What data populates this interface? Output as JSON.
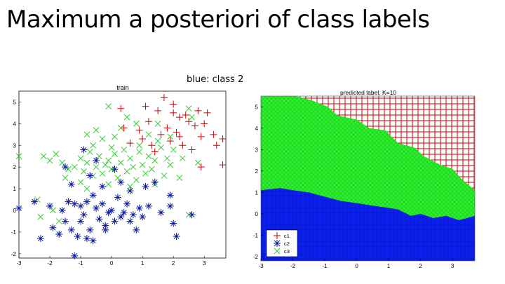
{
  "slide": {
    "title": "Maximum a posteriori of class labels",
    "note": "blue: class 2"
  },
  "colors": {
    "c1": "#cc0000",
    "c2": "#0b1aa0",
    "c3": "#33cc33",
    "c2_fill": "#0a1ff0",
    "c3_fill": "#2df02d"
  },
  "chart_data": [
    {
      "type": "scatter",
      "title": "train",
      "xlim": [
        -3,
        3.7
      ],
      "ylim": [
        -2.2,
        5.5
      ],
      "xticks": [
        -3,
        -2,
        -1,
        0,
        1,
        2,
        3
      ],
      "yticks": [
        -2,
        -1,
        0,
        1,
        2,
        3,
        4,
        5
      ],
      "series": [
        {
          "key": "c1",
          "marker": "plus",
          "points": [
            [
              2.8,
              4.6
            ],
            [
              3.1,
              4.5
            ],
            [
              2.4,
              4.4
            ],
            [
              2.0,
              4.5
            ],
            [
              1.5,
              4.6
            ],
            [
              2.2,
              4.3
            ],
            [
              2.5,
              4.1
            ],
            [
              3.0,
              4.0
            ],
            [
              2.7,
              3.9
            ],
            [
              1.8,
              3.8
            ],
            [
              1.2,
              4.1
            ],
            [
              0.9,
              3.7
            ],
            [
              1.6,
              3.5
            ],
            [
              2.1,
              3.6
            ],
            [
              2.9,
              3.4
            ],
            [
              3.3,
              3.5
            ],
            [
              3.6,
              3.3
            ],
            [
              1.0,
              3.3
            ],
            [
              0.4,
              3.8
            ],
            [
              0.6,
              3.1
            ],
            [
              2.3,
              3.0
            ],
            [
              1.3,
              3.0
            ],
            [
              1.9,
              3.2
            ],
            [
              2.6,
              2.8
            ],
            [
              3.6,
              2.1
            ],
            [
              2.9,
              2.0
            ],
            [
              2.0,
              4.9
            ],
            [
              1.7,
              5.2
            ],
            [
              1.1,
              4.8
            ],
            [
              0.3,
              4.7
            ],
            [
              2.2,
              3.4
            ],
            [
              1.4,
              2.7
            ],
            [
              3.4,
              3.0
            ]
          ]
        },
        {
          "key": "c2",
          "marker": "star",
          "points": [
            [
              -3.0,
              0.1
            ],
            [
              -2.3,
              -1.3
            ],
            [
              -2.0,
              0.2
            ],
            [
              -1.9,
              -0.8
            ],
            [
              -1.7,
              -1.1
            ],
            [
              -1.5,
              -0.5
            ],
            [
              -1.3,
              -0.9
            ],
            [
              -1.6,
              0.0
            ],
            [
              -1.4,
              0.4
            ],
            [
              -1.2,
              0.3
            ],
            [
              -1.0,
              0.2
            ],
            [
              -0.9,
              -0.2
            ],
            [
              -0.8,
              0.4
            ],
            [
              -0.7,
              -0.9
            ],
            [
              -1.1,
              -1.2
            ],
            [
              -0.6,
              -1.4
            ],
            [
              -0.5,
              0.1
            ],
            [
              -0.4,
              -0.4
            ],
            [
              -0.3,
              0.3
            ],
            [
              -0.2,
              -0.9
            ],
            [
              -0.1,
              -0.1
            ],
            [
              0.0,
              0.0
            ],
            [
              0.1,
              -0.5
            ],
            [
              0.2,
              0.6
            ],
            [
              0.3,
              -0.3
            ],
            [
              0.4,
              -0.1
            ],
            [
              0.5,
              0.3
            ],
            [
              0.6,
              -0.5
            ],
            [
              0.7,
              -0.2
            ],
            [
              0.9,
              0.1
            ],
            [
              1.0,
              -0.3
            ],
            [
              1.2,
              0.2
            ],
            [
              1.1,
              1.1
            ],
            [
              1.4,
              1.3
            ],
            [
              1.9,
              0.2
            ],
            [
              2.0,
              -0.6
            ],
            [
              2.1,
              -1.2
            ],
            [
              2.6,
              -0.2
            ],
            [
              1.9,
              0.7
            ],
            [
              -1.3,
              1.2
            ],
            [
              -0.7,
              1.6
            ],
            [
              -0.3,
              1.1
            ],
            [
              -0.5,
              2.3
            ],
            [
              0.3,
              1.3
            ],
            [
              -1.0,
              -0.5
            ],
            [
              -0.8,
              -1.3
            ],
            [
              -2.5,
              0.4
            ],
            [
              -1.2,
              -2.1
            ],
            [
              -0.2,
              -0.7
            ],
            [
              0.8,
              -0.9
            ],
            [
              1.6,
              -0.1
            ],
            [
              0.1,
              1.9
            ],
            [
              -1.5,
              2.0
            ],
            [
              -0.9,
              2.8
            ],
            [
              -0.6,
              0.7
            ],
            [
              0.6,
              0.9
            ]
          ]
        },
        {
          "key": "c3",
          "marker": "cross",
          "points": [
            [
              -3.0,
              2.5
            ],
            [
              -2.2,
              2.5
            ],
            [
              -2.0,
              2.3
            ],
            [
              -1.8,
              2.6
            ],
            [
              -1.6,
              2.2
            ],
            [
              -1.4,
              1.9
            ],
            [
              -1.2,
              2.0
            ],
            [
              -1.0,
              2.4
            ],
            [
              -0.9,
              1.8
            ],
            [
              -0.8,
              2.2
            ],
            [
              -0.7,
              2.7
            ],
            [
              -0.6,
              1.6
            ],
            [
              -0.5,
              2.0
            ],
            [
              -0.4,
              2.5
            ],
            [
              -0.3,
              1.7
            ],
            [
              -0.2,
              2.1
            ],
            [
              -0.1,
              2.3
            ],
            [
              0.0,
              1.9
            ],
            [
              0.1,
              2.6
            ],
            [
              0.2,
              1.5
            ],
            [
              0.3,
              2.2
            ],
            [
              0.4,
              2.8
            ],
            [
              0.5,
              1.8
            ],
            [
              0.6,
              2.4
            ],
            [
              0.7,
              2.0
            ],
            [
              0.8,
              1.4
            ],
            [
              0.9,
              2.7
            ],
            [
              1.0,
              2.1
            ],
            [
              1.1,
              1.7
            ],
            [
              1.2,
              2.5
            ],
            [
              1.3,
              1.9
            ],
            [
              1.4,
              2.3
            ],
            [
              1.5,
              3.2
            ],
            [
              1.6,
              2.9
            ],
            [
              1.7,
              1.6
            ],
            [
              1.8,
              2.4
            ],
            [
              1.9,
              2.1
            ],
            [
              2.0,
              2.8
            ],
            [
              2.3,
              2.4
            ],
            [
              2.8,
              2.2
            ],
            [
              -0.3,
              3.3
            ],
            [
              -0.6,
              3.0
            ],
            [
              -0.5,
              3.7
            ],
            [
              0.1,
              3.4
            ],
            [
              0.5,
              4.3
            ],
            [
              -0.1,
              4.8
            ],
            [
              0.8,
              4.0
            ],
            [
              0.0,
              2.9
            ],
            [
              1.9,
              3.4
            ],
            [
              2.6,
              4.3
            ],
            [
              -1.0,
              1.3
            ],
            [
              -0.8,
              1.0
            ],
            [
              -0.1,
              1.2
            ],
            [
              0.6,
              1.1
            ],
            [
              -2.4,
              0.5
            ],
            [
              -1.9,
              0.0
            ],
            [
              -1.5,
              1.5
            ],
            [
              1.2,
              3.5
            ],
            [
              0.9,
              3.0
            ],
            [
              1.4,
              1.2
            ],
            [
              2.2,
              1.5
            ],
            [
              1.5,
              4.0
            ],
            [
              0.3,
              3.8
            ],
            [
              -0.8,
              3.5
            ],
            [
              2.5,
              4.7
            ],
            [
              2.5,
              -0.2
            ],
            [
              -1.7,
              -0.5
            ],
            [
              -2.3,
              -0.3
            ]
          ]
        }
      ]
    },
    {
      "type": "heatmap",
      "title": "predicted label, K=10",
      "xlim": [
        -3,
        3.7
      ],
      "ylim": [
        -2.2,
        5.5
      ],
      "xticks": [
        -3,
        -2,
        -1,
        0,
        1,
        2,
        3
      ],
      "yticks": [
        -2,
        -1,
        0,
        1,
        2,
        3,
        4,
        5
      ],
      "legend": {
        "placement": "bottom-left",
        "entries": [
          "c1",
          "c2",
          "c3"
        ]
      },
      "boundary_c3_top": [
        [
          -3.0,
          5.5
        ],
        [
          -1.9,
          5.5
        ],
        [
          -1.4,
          5.3
        ],
        [
          -0.9,
          5.0
        ],
        [
          -0.6,
          4.6
        ],
        [
          0.0,
          4.4
        ],
        [
          0.4,
          4.0
        ],
        [
          0.9,
          3.9
        ],
        [
          1.3,
          3.3
        ],
        [
          1.8,
          3.1
        ],
        [
          2.1,
          2.7
        ],
        [
          2.6,
          2.3
        ],
        [
          3.0,
          2.1
        ],
        [
          3.3,
          1.6
        ],
        [
          3.7,
          1.1
        ]
      ],
      "boundary_c2_top": [
        [
          -3.0,
          1.1
        ],
        [
          -2.4,
          1.2
        ],
        [
          -2.0,
          1.1
        ],
        [
          -1.5,
          1.0
        ],
        [
          -1.0,
          0.8
        ],
        [
          -0.5,
          0.6
        ],
        [
          0.0,
          0.5
        ],
        [
          0.4,
          0.4
        ],
        [
          0.9,
          0.3
        ],
        [
          1.3,
          0.2
        ],
        [
          1.7,
          -0.1
        ],
        [
          2.0,
          0.0
        ],
        [
          2.4,
          -0.2
        ],
        [
          2.8,
          -0.1
        ],
        [
          3.2,
          -0.3
        ],
        [
          3.7,
          -0.1
        ]
      ]
    }
  ]
}
